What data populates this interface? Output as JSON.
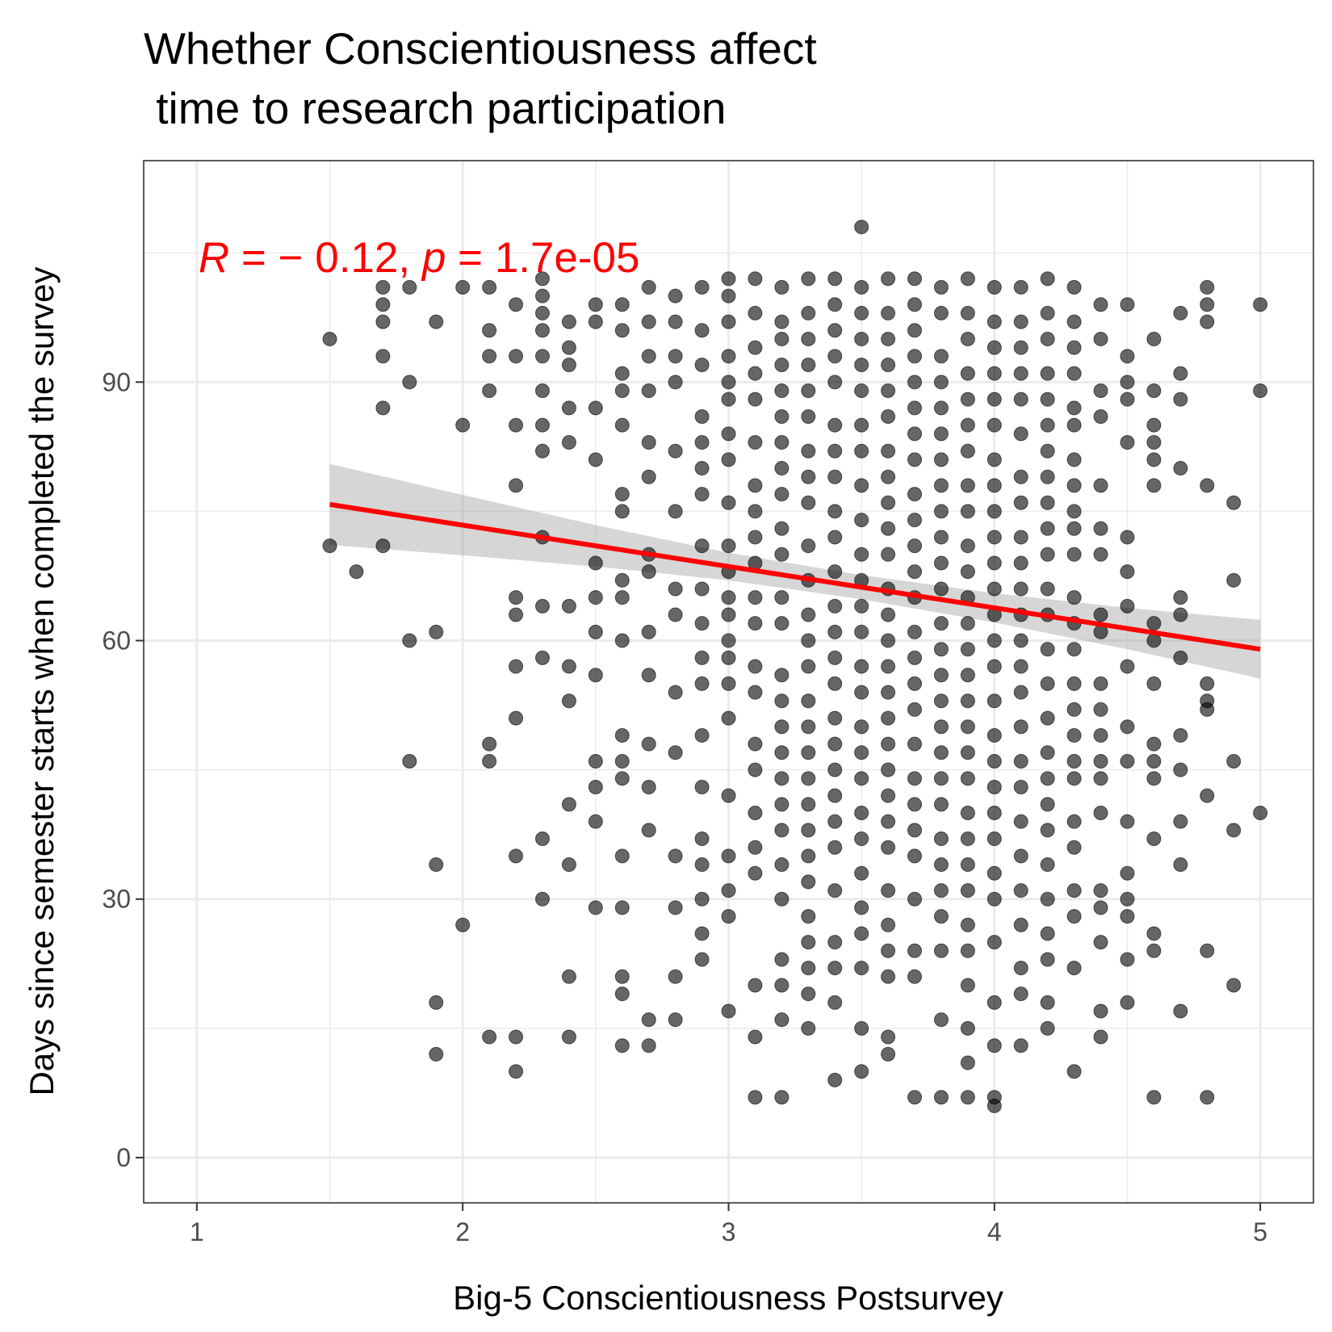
{
  "chart_data": {
    "type": "scatter",
    "title": [
      "Whether Conscientiousness affect",
      " time to research participation"
    ],
    "x_label": "Big-5 Conscientiousness Postsurvey",
    "y_label": "Days since semester starts when completed the survey",
    "annotation": [
      "R",
      " = − 0.12, ",
      "p",
      " = 1.7e-05"
    ],
    "annotation_color": "#ff0000",
    "xlim": [
      0.8,
      5.2
    ],
    "ylim": [
      -5.25,
      115.7
    ],
    "xticks": [
      1,
      2,
      3,
      4,
      5
    ],
    "yticks": [
      0,
      30,
      60,
      90
    ],
    "x_minor": [
      1.5,
      2.5,
      3.5,
      4.5
    ],
    "y_minor": [
      15,
      45,
      75,
      105
    ],
    "grid": true,
    "color": "#000000",
    "opacity": 0.6,
    "x": [
      1.5,
      1.5,
      1.6,
      1.7,
      1.7,
      1.7,
      1.7,
      1.7,
      1.7,
      1.8,
      1.8,
      1.8,
      1.8,
      1.9,
      1.9,
      1.9,
      1.9,
      1.9,
      2.0,
      2.0,
      2.0,
      2.1,
      2.1,
      2.1,
      2.1,
      2.1,
      2.1,
      2.1,
      2.2,
      2.2,
      2.2,
      2.2,
      2.2,
      2.2,
      2.2,
      2.2,
      2.2,
      2.2,
      2.2,
      2.3,
      2.3,
      2.3,
      2.3,
      2.3,
      2.3,
      2.3,
      2.3,
      2.3,
      2.3,
      2.3,
      2.3,
      2.3,
      2.4,
      2.4,
      2.4,
      2.4,
      2.4,
      2.4,
      2.4,
      2.4,
      2.4,
      2.4,
      2.4,
      2.4,
      2.5,
      2.5,
      2.5,
      2.5,
      2.5,
      2.5,
      2.5,
      2.5,
      2.5,
      2.5,
      2.5,
      2.5,
      2.6,
      2.6,
      2.6,
      2.6,
      2.6,
      2.6,
      2.6,
      2.6,
      2.6,
      2.6,
      2.6,
      2.6,
      2.6,
      2.6,
      2.6,
      2.6,
      2.6,
      2.6,
      2.7,
      2.7,
      2.7,
      2.7,
      2.7,
      2.7,
      2.7,
      2.7,
      2.7,
      2.7,
      2.7,
      2.7,
      2.7,
      2.7,
      2.7,
      2.8,
      2.8,
      2.8,
      2.8,
      2.8,
      2.8,
      2.8,
      2.8,
      2.8,
      2.8,
      2.8,
      2.8,
      2.8,
      2.8,
      2.9,
      2.9,
      2.9,
      2.9,
      2.9,
      2.9,
      2.9,
      2.9,
      2.9,
      2.9,
      2.9,
      2.9,
      2.9,
      2.9,
      2.9,
      2.9,
      2.9,
      2.9,
      2.9,
      3.0,
      3.0,
      3.0,
      3.0,
      3.0,
      3.0,
      3.0,
      3.0,
      3.0,
      3.0,
      3.0,
      3.0,
      3.0,
      3.0,
      3.0,
      3.0,
      3.0,
      3.0,
      3.0,
      3.0,
      3.0,
      3.0,
      3.1,
      3.1,
      3.1,
      3.1,
      3.1,
      3.1,
      3.1,
      3.1,
      3.1,
      3.1,
      3.1,
      3.1,
      3.1,
      3.1,
      3.1,
      3.1,
      3.1,
      3.1,
      3.1,
      3.1,
      3.1,
      3.1,
      3.2,
      3.2,
      3.2,
      3.2,
      3.2,
      3.2,
      3.2,
      3.2,
      3.2,
      3.2,
      3.2,
      3.2,
      3.2,
      3.2,
      3.2,
      3.2,
      3.2,
      3.2,
      3.2,
      3.2,
      3.2,
      3.2,
      3.2,
      3.2,
      3.2,
      3.2,
      3.3,
      3.3,
      3.3,
      3.3,
      3.3,
      3.3,
      3.3,
      3.3,
      3.3,
      3.3,
      3.3,
      3.3,
      3.3,
      3.3,
      3.3,
      3.3,
      3.3,
      3.3,
      3.3,
      3.3,
      3.3,
      3.3,
      3.3,
      3.3,
      3.3,
      3.3,
      3.3,
      3.4,
      3.4,
      3.4,
      3.4,
      3.4,
      3.4,
      3.4,
      3.4,
      3.4,
      3.4,
      3.4,
      3.4,
      3.4,
      3.4,
      3.4,
      3.4,
      3.4,
      3.4,
      3.4,
      3.4,
      3.4,
      3.4,
      3.4,
      3.4,
      3.4,
      3.4,
      3.5,
      3.5,
      3.5,
      3.5,
      3.5,
      3.5,
      3.5,
      3.5,
      3.5,
      3.5,
      3.5,
      3.5,
      3.5,
      3.5,
      3.5,
      3.5,
      3.5,
      3.5,
      3.5,
      3.5,
      3.5,
      3.5,
      3.5,
      3.5,
      3.5,
      3.5,
      3.5,
      3.6,
      3.6,
      3.6,
      3.6,
      3.6,
      3.6,
      3.6,
      3.6,
      3.6,
      3.6,
      3.6,
      3.6,
      3.6,
      3.6,
      3.6,
      3.6,
      3.6,
      3.6,
      3.6,
      3.6,
      3.6,
      3.6,
      3.6,
      3.6,
      3.6,
      3.6,
      3.6,
      3.6,
      3.7,
      3.7,
      3.7,
      3.7,
      3.7,
      3.7,
      3.7,
      3.7,
      3.7,
      3.7,
      3.7,
      3.7,
      3.7,
      3.7,
      3.7,
      3.7,
      3.7,
      3.7,
      3.7,
      3.7,
      3.7,
      3.7,
      3.7,
      3.7,
      3.7,
      3.7,
      3.8,
      3.8,
      3.8,
      3.8,
      3.8,
      3.8,
      3.8,
      3.8,
      3.8,
      3.8,
      3.8,
      3.8,
      3.8,
      3.8,
      3.8,
      3.8,
      3.8,
      3.8,
      3.8,
      3.8,
      3.8,
      3.8,
      3.8,
      3.8,
      3.8,
      3.8,
      3.8,
      3.9,
      3.9,
      3.9,
      3.9,
      3.9,
      3.9,
      3.9,
      3.9,
      3.9,
      3.9,
      3.9,
      3.9,
      3.9,
      3.9,
      3.9,
      3.9,
      3.9,
      3.9,
      3.9,
      3.9,
      3.9,
      3.9,
      3.9,
      3.9,
      3.9,
      3.9,
      3.9,
      3.9,
      3.9,
      4.0,
      4.0,
      4.0,
      4.0,
      4.0,
      4.0,
      4.0,
      4.0,
      4.0,
      4.0,
      4.0,
      4.0,
      4.0,
      4.0,
      4.0,
      4.0,
      4.0,
      4.0,
      4.0,
      4.0,
      4.0,
      4.0,
      4.0,
      4.0,
      4.0,
      4.0,
      4.0,
      4.0,
      4.1,
      4.1,
      4.1,
      4.1,
      4.1,
      4.1,
      4.1,
      4.1,
      4.1,
      4.1,
      4.1,
      4.1,
      4.1,
      4.1,
      4.1,
      4.1,
      4.1,
      4.1,
      4.1,
      4.1,
      4.1,
      4.1,
      4.1,
      4.1,
      4.1,
      4.2,
      4.2,
      4.2,
      4.2,
      4.2,
      4.2,
      4.2,
      4.2,
      4.2,
      4.2,
      4.2,
      4.2,
      4.2,
      4.2,
      4.2,
      4.2,
      4.2,
      4.2,
      4.2,
      4.2,
      4.2,
      4.2,
      4.2,
      4.2,
      4.2,
      4.2,
      4.3,
      4.3,
      4.3,
      4.3,
      4.3,
      4.3,
      4.3,
      4.3,
      4.3,
      4.3,
      4.3,
      4.3,
      4.3,
      4.3,
      4.3,
      4.3,
      4.3,
      4.3,
      4.3,
      4.3,
      4.3,
      4.3,
      4.3,
      4.3,
      4.3,
      4.4,
      4.4,
      4.4,
      4.4,
      4.4,
      4.4,
      4.4,
      4.4,
      4.4,
      4.4,
      4.4,
      4.4,
      4.4,
      4.4,
      4.4,
      4.4,
      4.4,
      4.4,
      4.4,
      4.4,
      4.5,
      4.5,
      4.5,
      4.5,
      4.5,
      4.5,
      4.5,
      4.5,
      4.5,
      4.5,
      4.5,
      4.5,
      4.5,
      4.5,
      4.5,
      4.5,
      4.5,
      4.6,
      4.6,
      4.6,
      4.6,
      4.6,
      4.6,
      4.6,
      4.6,
      4.6,
      4.6,
      4.6,
      4.6,
      4.6,
      4.6,
      4.6,
      4.6,
      4.7,
      4.7,
      4.7,
      4.7,
      4.7,
      4.7,
      4.7,
      4.7,
      4.7,
      4.7,
      4.7,
      4.7,
      4.8,
      4.8,
      4.8,
      4.8,
      4.8,
      4.8,
      4.8,
      4.8,
      4.8,
      4.8,
      4.9,
      4.9,
      4.9,
      4.9,
      4.9,
      5.0,
      5.0,
      5.0
    ],
    "values": [
      95,
      71,
      68,
      101,
      99,
      97,
      93,
      87,
      71,
      101,
      90,
      60,
      46,
      97,
      61,
      34,
      18,
      12,
      101,
      85,
      27,
      101,
      96,
      93,
      89,
      48,
      46,
      14,
      99,
      93,
      85,
      78,
      65,
      63,
      57,
      51,
      35,
      14,
      10,
      102,
      100,
      98,
      96,
      93,
      89,
      85,
      82,
      72,
      64,
      58,
      37,
      30,
      97,
      94,
      92,
      87,
      83,
      64,
      57,
      53,
      41,
      34,
      21,
      14,
      99,
      97,
      87,
      81,
      69,
      65,
      61,
      56,
      46,
      43,
      39,
      29,
      99,
      96,
      91,
      89,
      85,
      77,
      75,
      67,
      65,
      60,
      49,
      46,
      44,
      35,
      29,
      21,
      19,
      13,
      101,
      97,
      93,
      89,
      83,
      79,
      70,
      68,
      61,
      56,
      48,
      43,
      38,
      16,
      13,
      100,
      97,
      93,
      90,
      82,
      75,
      66,
      63,
      54,
      47,
      35,
      29,
      21,
      16,
      101,
      96,
      92,
      86,
      83,
      80,
      77,
      71,
      66,
      62,
      58,
      55,
      49,
      43,
      37,
      34,
      30,
      26,
      23,
      102,
      100,
      97,
      93,
      90,
      88,
      84,
      81,
      76,
      71,
      68,
      65,
      63,
      60,
      58,
      55,
      51,
      42,
      35,
      31,
      28,
      17,
      102,
      98,
      94,
      91,
      88,
      83,
      78,
      75,
      72,
      69,
      65,
      62,
      57,
      54,
      48,
      45,
      40,
      36,
      33,
      20,
      14,
      7,
      101,
      97,
      95,
      92,
      89,
      86,
      83,
      80,
      77,
      73,
      70,
      65,
      62,
      56,
      53,
      50,
      47,
      44,
      41,
      38,
      34,
      30,
      23,
      20,
      16,
      7,
      102,
      98,
      95,
      92,
      89,
      86,
      82,
      79,
      76,
      71,
      67,
      63,
      60,
      57,
      53,
      50,
      47,
      44,
      41,
      38,
      35,
      32,
      28,
      25,
      22,
      19,
      15,
      102,
      99,
      96,
      93,
      90,
      85,
      82,
      79,
      75,
      72,
      68,
      64,
      61,
      58,
      55,
      51,
      48,
      45,
      42,
      39,
      36,
      31,
      25,
      22,
      18,
      9,
      108,
      101,
      98,
      95,
      92,
      89,
      85,
      82,
      78,
      74,
      70,
      67,
      64,
      61,
      57,
      54,
      50,
      47,
      44,
      40,
      37,
      33,
      29,
      26,
      22,
      15,
      10,
      102,
      98,
      95,
      92,
      89,
      86,
      82,
      79,
      76,
      73,
      70,
      66,
      63,
      60,
      57,
      54,
      51,
      48,
      45,
      42,
      39,
      36,
      31,
      27,
      24,
      21,
      14,
      12,
      102,
      99,
      96,
      93,
      90,
      87,
      84,
      81,
      77,
      74,
      71,
      68,
      65,
      61,
      58,
      55,
      52,
      48,
      44,
      41,
      38,
      35,
      30,
      24,
      21,
      7,
      101,
      98,
      93,
      90,
      87,
      84,
      81,
      78,
      75,
      72,
      69,
      66,
      62,
      59,
      56,
      53,
      50,
      47,
      44,
      41,
      37,
      34,
      31,
      28,
      24,
      16,
      7,
      102,
      98,
      95,
      91,
      88,
      85,
      82,
      78,
      75,
      71,
      68,
      65,
      62,
      59,
      56,
      53,
      50,
      47,
      44,
      40,
      37,
      34,
      31,
      27,
      24,
      20,
      15,
      11,
      7,
      101,
      97,
      94,
      91,
      88,
      85,
      81,
      78,
      75,
      72,
      69,
      66,
      63,
      60,
      57,
      53,
      49,
      46,
      43,
      40,
      37,
      33,
      30,
      25,
      18,
      13,
      7,
      6,
      101,
      97,
      94,
      91,
      88,
      84,
      79,
      76,
      72,
      69,
      66,
      63,
      60,
      57,
      54,
      50,
      46,
      43,
      39,
      35,
      31,
      27,
      22,
      19,
      13,
      102,
      98,
      95,
      91,
      88,
      85,
      82,
      79,
      76,
      73,
      70,
      66,
      63,
      59,
      55,
      51,
      47,
      44,
      41,
      38,
      34,
      30,
      26,
      23,
      18,
      15,
      101,
      97,
      94,
      91,
      87,
      85,
      81,
      78,
      75,
      73,
      70,
      65,
      62,
      59,
      55,
      52,
      49,
      46,
      44,
      39,
      36,
      31,
      28,
      22,
      10,
      99,
      95,
      89,
      86,
      78,
      73,
      70,
      63,
      61,
      55,
      52,
      49,
      46,
      44,
      40,
      31,
      29,
      25,
      17,
      14,
      99,
      93,
      90,
      88,
      83,
      72,
      68,
      64,
      57,
      50,
      46,
      39,
      33,
      30,
      28,
      23,
      18,
      95,
      89,
      85,
      83,
      81,
      78,
      62,
      60,
      55,
      48,
      46,
      44,
      37,
      26,
      24,
      7,
      98,
      91,
      88,
      80,
      65,
      63,
      58,
      49,
      45,
      39,
      34,
      17,
      101,
      99,
      97,
      78,
      55,
      53,
      52,
      42,
      24,
      7,
      76,
      67,
      46,
      38,
      20,
      99,
      89,
      40
    ],
    "fit": {
      "color": "#ff0000",
      "band_color": "#999999",
      "x": [
        1.5,
        2,
        2.5,
        3,
        3.5,
        4,
        4.5,
        5
      ],
      "y": [
        75.8,
        73.4,
        71.0,
        68.6,
        66.2,
        63.8,
        61.4,
        59.0
      ],
      "lower": [
        71.1,
        69.9,
        68.6,
        67.0,
        64.8,
        62.1,
        59.0,
        55.6
      ],
      "upper": [
        80.5,
        76.9,
        73.4,
        70.2,
        67.6,
        65.5,
        63.8,
        62.4
      ]
    }
  }
}
